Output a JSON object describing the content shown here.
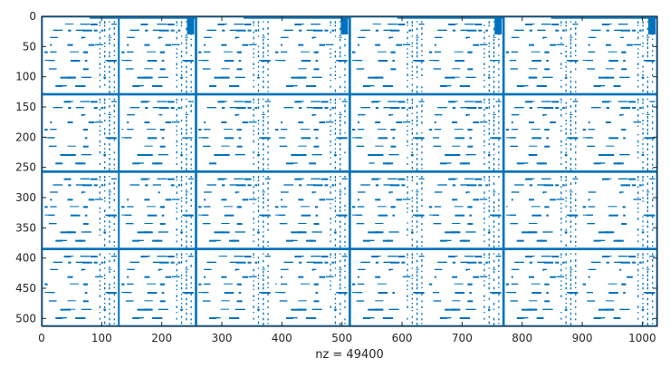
{
  "chart_data": {
    "type": "heatmap",
    "kind": "sparsity-pattern",
    "xlabel": "nz = 49400",
    "x_ticks": [
      0,
      100,
      200,
      300,
      400,
      500,
      600,
      700,
      800,
      900,
      1000
    ],
    "y_ticks": [
      0,
      50,
      100,
      150,
      200,
      250,
      300,
      350,
      400,
      450,
      500
    ],
    "xlim": [
      0,
      1025
    ],
    "ylim": [
      0,
      513
    ],
    "y_reversed": true,
    "grid": false,
    "marker_color": "#0072bd",
    "column_blocks": [
      [
        0,
        256
      ],
      [
        256,
        512
      ],
      [
        512,
        768
      ],
      [
        768,
        1024
      ]
    ],
    "row_blocks": [
      [
        0,
        128
      ],
      [
        128,
        256
      ],
      [
        256,
        384
      ],
      [
        384,
        512
      ]
    ],
    "dense_rows": [
      0,
      128,
      129,
      256,
      257,
      384,
      385,
      512
    ],
    "dense_cols": [
      0,
      128,
      256,
      257,
      512,
      513,
      768,
      769,
      1024
    ]
  }
}
